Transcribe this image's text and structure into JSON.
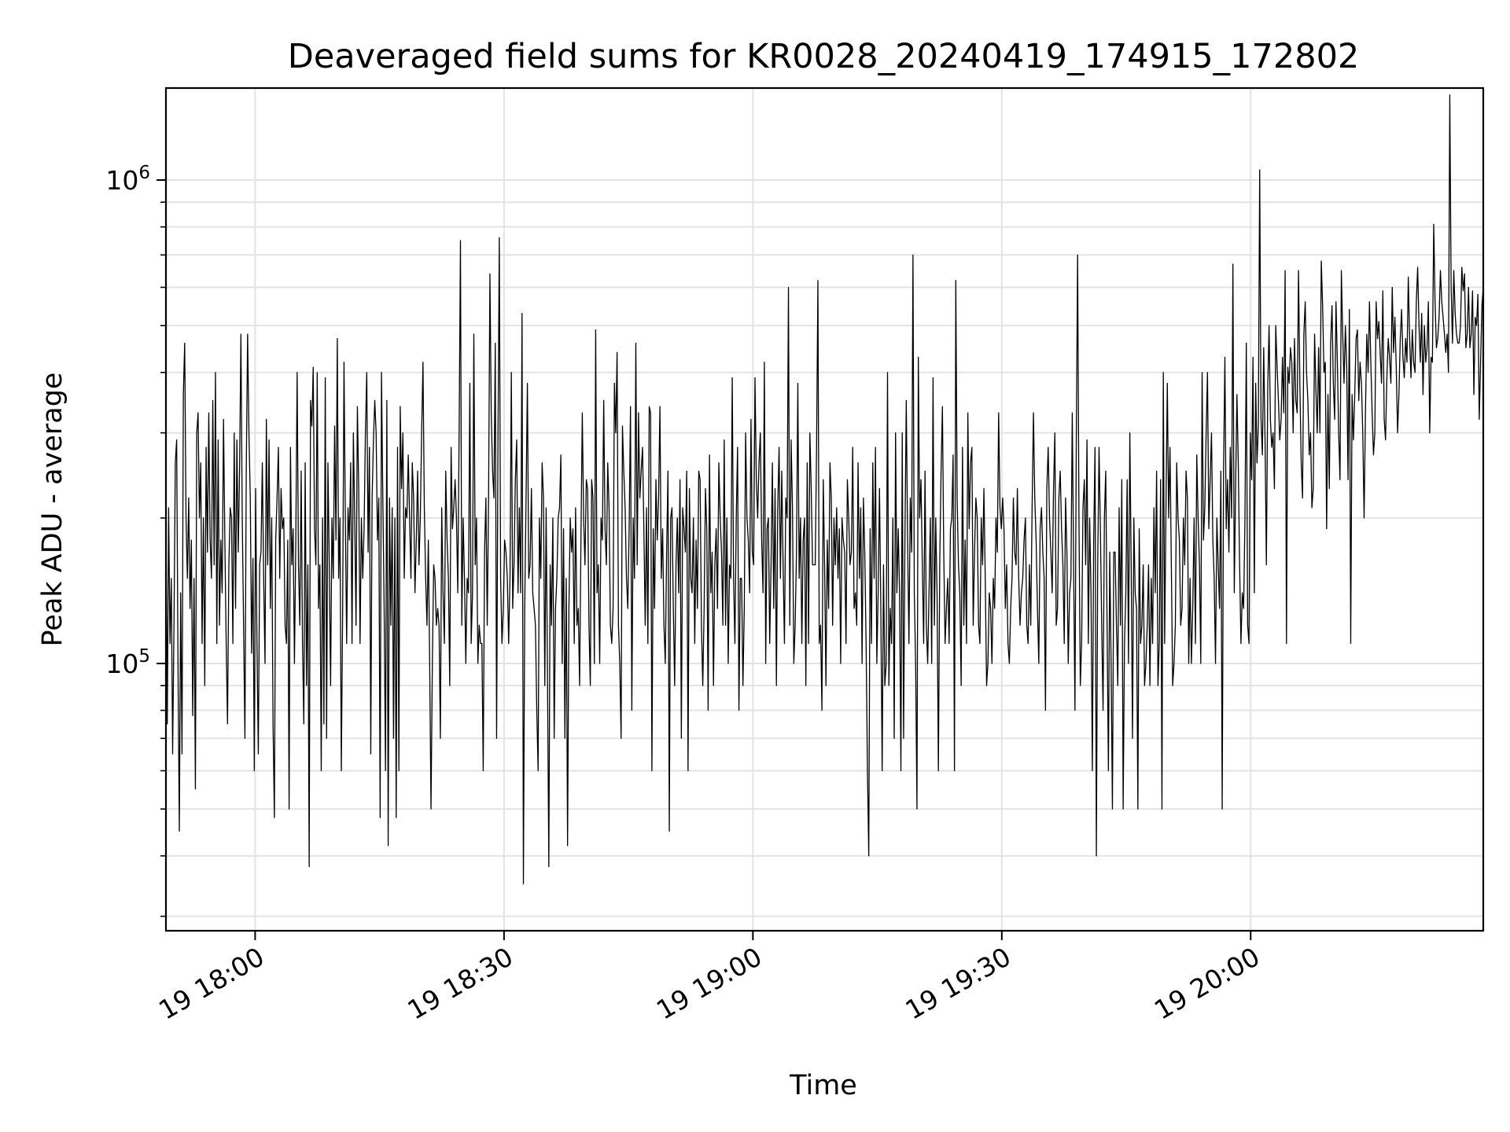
{
  "chart_data": {
    "type": "line",
    "title": "Deaveraged field sums for KR0028_20240419_174915_172802",
    "xlabel": "Time",
    "ylabel": "Peak ADU - average",
    "yscale": "log",
    "ylim": [
      28000,
      1550000
    ],
    "xlim": [
      "2024-04-19 17:49:15",
      "2024-04-19 20:28:02"
    ],
    "x_ticks": [
      "2024-04-19 18:00",
      "2024-04-19 18:30",
      "2024-04-19 19:00",
      "2024-04-19 19:30",
      "2024-04-19 20:00"
    ],
    "x_tick_labels": [
      "19 18:00",
      "19 18:30",
      "19 19:00",
      "19 19:30",
      "19 20:00"
    ],
    "y_ticks": [
      {
        "base": "10",
        "exp": "5",
        "value": 100000
      },
      {
        "base": "10",
        "exp": "6",
        "value": 1000000
      }
    ],
    "grid": true,
    "legend": "none",
    "line_color": "#000000",
    "series": [
      {
        "x_start": "2024-04-19 17:49:15",
        "x_end": "2024-04-19 20:28:02",
        "values": [
          200000,
          75000,
          210000,
          110000,
          150000,
          65000,
          120000,
          260000,
          290000,
          100000,
          45000,
          140000,
          65000,
          360000,
          460000,
          200000,
          150000,
          220000,
          130000,
          180000,
          78000,
          150000,
          55000,
          300000,
          330000,
          200000,
          260000,
          110000,
          200000,
          90000,
          280000,
          170000,
          330000,
          180000,
          150000,
          350000,
          160000,
          400000,
          110000,
          290000,
          120000,
          180000,
          140000,
          320000,
          180000,
          110000,
          75000,
          160000,
          210000,
          200000,
          110000,
          300000,
          130000,
          290000,
          170000,
          250000,
          480000,
          200000,
          120000,
          70000,
          250000,
          480000,
          300000,
          220000,
          105000,
          165000,
          60000,
          230000,
          110000,
          65000,
          160000,
          170000,
          260000,
          150000,
          100000,
          320000,
          160000,
          290000,
          130000,
          200000,
          75000,
          48000,
          180000,
          220000,
          280000,
          150000,
          230000,
          190000,
          200000,
          120000,
          110000,
          180000,
          50000,
          280000,
          160000,
          190000,
          100000,
          180000,
          400000,
          160000,
          120000,
          250000,
          110000,
          75000,
          260000,
          90000,
          160000,
          38000,
          350000,
          310000,
          410000,
          190000,
          160000,
          400000,
          130000,
          160000,
          60000,
          200000,
          75000,
          390000,
          70000,
          260000,
          160000,
          90000,
          200000,
          150000,
          310000,
          180000,
          470000,
          150000,
          200000,
          60000,
          130000,
          420000,
          200000,
          110000,
          210000,
          180000,
          260000,
          110000,
          300000,
          200000,
          120000,
          340000,
          230000,
          110000,
          200000,
          150000,
          190000,
          300000,
          400000,
          170000,
          280000,
          65000,
          220000,
          290000,
          350000,
          300000,
          180000,
          220000,
          48000,
          400000,
          220000,
          130000,
          60000,
          350000,
          42000,
          220000,
          120000,
          210000,
          70000,
          200000,
          48000,
          280000,
          60000,
          340000,
          230000,
          300000,
          150000,
          210000,
          200000,
          270000,
          200000,
          150000,
          260000,
          220000,
          140000,
          180000,
          250000,
          160000,
          200000,
          300000,
          420000,
          210000,
          150000,
          120000,
          180000,
          100000,
          50000,
          100000,
          160000,
          150000,
          120000,
          130000,
          120000,
          70000,
          210000,
          140000,
          110000,
          250000,
          180000,
          150000,
          90000,
          280000,
          190000,
          210000,
          240000,
          200000,
          140000,
          300000,
          750000,
          120000,
          200000,
          150000,
          100000,
          150000,
          140000,
          380000,
          110000,
          140000,
          480000,
          160000,
          200000,
          100000,
          120000,
          110000,
          110000,
          60000,
          170000,
          220000,
          120000,
          220000,
          640000,
          330000,
          250000,
          220000,
          460000,
          70000,
          280000,
          760000,
          150000,
          110000,
          130000,
          180000,
          170000,
          150000,
          110000,
          150000,
          400000,
          130000,
          160000,
          240000,
          290000,
          140000,
          210000,
          140000,
          530000,
          35000,
          130000,
          220000,
          380000,
          150000,
          160000,
          230000,
          140000,
          130000,
          120000,
          80000,
          60000,
          200000,
          150000,
          260000,
          220000,
          90000,
          210000,
          95000,
          38000,
          160000,
          120000,
          200000,
          70000,
          130000,
          150000,
          200000,
          210000,
          270000,
          100000,
          190000,
          70000,
          150000,
          42000,
          130000,
          200000,
          170000,
          190000,
          110000,
          210000,
          120000,
          130000,
          90000,
          180000,
          330000,
          200000,
          160000,
          240000,
          230000,
          120000,
          90000,
          240000,
          220000,
          100000,
          490000,
          140000,
          160000,
          100000,
          200000,
          180000,
          350000,
          190000,
          160000,
          260000,
          210000,
          120000,
          110000,
          130000,
          380000,
          300000,
          440000,
          120000,
          100000,
          70000,
          310000,
          250000,
          210000,
          150000,
          130000,
          190000,
          340000,
          80000,
          200000,
          150000,
          460000,
          160000,
          330000,
          220000,
          250000,
          280000,
          190000,
          120000,
          210000,
          110000,
          340000,
          330000,
          60000,
          190000,
          130000,
          240000,
          180000,
          220000,
          340000,
          150000,
          190000,
          120000,
          100000,
          170000,
          250000,
          45000,
          200000,
          210000,
          130000,
          90000,
          160000,
          200000,
          140000,
          240000,
          70000,
          210000,
          190000,
          170000,
          250000,
          60000,
          230000,
          150000,
          140000,
          200000,
          110000,
          180000,
          130000,
          250000,
          240000,
          120000,
          90000,
          130000,
          230000,
          190000,
          80000,
          270000,
          140000,
          170000,
          90000,
          160000,
          190000,
          130000,
          260000,
          200000,
          170000,
          120000,
          290000,
          120000,
          200000,
          100000,
          160000,
          150000,
          390000,
          150000,
          110000,
          200000,
          280000,
          80000,
          150000,
          150000,
          90000,
          130000,
          300000,
          200000,
          180000,
          140000,
          320000,
          170000,
          160000,
          390000,
          240000,
          200000,
          260000,
          300000,
          180000,
          140000,
          420000,
          100000,
          190000,
          200000,
          110000,
          160000,
          260000,
          130000,
          230000,
          90000,
          210000,
          280000,
          150000,
          250000,
          160000,
          110000,
          220000,
          200000,
          600000,
          120000,
          290000,
          210000,
          100000,
          120000,
          170000,
          380000,
          150000,
          200000,
          110000,
          180000,
          200000,
          90000,
          260000,
          110000,
          300000,
          230000,
          160000,
          160000,
          160000,
          280000,
          620000,
          110000,
          120000,
          80000,
          240000,
          160000,
          90000,
          180000,
          130000,
          260000,
          220000,
          120000,
          200000,
          160000,
          210000,
          150000,
          190000,
          100000,
          200000,
          180000,
          170000,
          110000,
          240000,
          200000,
          160000,
          170000,
          280000,
          130000,
          140000,
          120000,
          260000,
          150000,
          210000,
          100000,
          220000,
          170000,
          110000,
          60000,
          40000,
          190000,
          110000,
          260000,
          150000,
          280000,
          100000,
          140000,
          230000,
          130000,
          60000,
          160000,
          90000,
          100000,
          400000,
          90000,
          130000,
          110000,
          200000,
          70000,
          300000,
          140000,
          190000,
          140000,
          60000,
          300000,
          70000,
          180000,
          350000,
          180000,
          110000,
          220000,
          170000,
          700000,
          140000,
          100000,
          50000,
          430000,
          200000,
          240000,
          160000,
          110000,
          250000,
          120000,
          100000,
          140000,
          200000,
          100000,
          390000,
          120000,
          200000,
          140000,
          60000,
          160000,
          250000,
          340000,
          170000,
          110000,
          130000,
          150000,
          110000,
          190000,
          200000,
          270000,
          60000,
          620000,
          220000,
          160000,
          140000,
          90000,
          280000,
          120000,
          180000,
          110000,
          330000,
          190000,
          260000,
          280000,
          120000,
          170000,
          220000,
          200000,
          120000,
          110000,
          200000,
          160000,
          230000,
          150000,
          90000,
          100000,
          140000,
          130000,
          100000,
          150000,
          130000,
          200000,
          170000,
          330000,
          210000,
          190000,
          220000,
          190000,
          130000,
          160000,
          110000,
          100000,
          130000,
          150000,
          220000,
          170000,
          160000,
          230000,
          150000,
          120000,
          140000,
          150000,
          180000,
          200000,
          120000,
          110000,
          160000,
          120000,
          210000,
          330000,
          220000,
          180000,
          130000,
          100000,
          190000,
          210000,
          170000,
          150000,
          80000,
          230000,
          280000,
          200000,
          170000,
          140000,
          230000,
          300000,
          120000,
          130000,
          220000,
          250000,
          190000,
          160000,
          110000,
          220000,
          170000,
          100000,
          140000,
          150000,
          330000,
          160000,
          80000,
          290000,
          700000,
          200000,
          90000,
          110000,
          210000,
          240000,
          160000,
          290000,
          110000,
          200000,
          140000,
          60000,
          180000,
          280000,
          40000,
          160000,
          280000,
          190000,
          120000,
          80000,
          200000,
          250000,
          120000,
          60000,
          170000,
          100000,
          50000,
          170000,
          170000,
          120000,
          90000,
          210000,
          120000,
          240000,
          50000,
          110000,
          140000,
          240000,
          100000,
          300000,
          160000,
          70000,
          200000,
          140000,
          130000,
          50000,
          190000,
          110000,
          120000,
          160000,
          90000,
          100000,
          120000,
          160000,
          90000,
          150000,
          110000,
          210000,
          140000,
          250000,
          90000,
          110000,
          240000,
          50000,
          400000,
          110000,
          210000,
          380000,
          200000,
          280000,
          160000,
          90000,
          100000,
          120000,
          260000,
          200000,
          180000,
          120000,
          130000,
          200000,
          160000,
          250000,
          220000,
          100000,
          150000,
          100000,
          130000,
          200000,
          110000,
          270000,
          200000,
          160000,
          100000,
          400000,
          180000,
          210000,
          300000,
          400000,
          190000,
          240000,
          300000,
          180000,
          150000,
          100000,
          200000,
          160000,
          130000,
          250000,
          50000,
          250000,
          430000,
          190000,
          240000,
          170000,
          280000,
          200000,
          670000,
          140000,
          230000,
          360000,
          260000,
          160000,
          110000,
          140000,
          130000,
          200000,
          460000,
          120000,
          110000,
          300000,
          240000,
          430000,
          140000,
          380000,
          260000,
          310000,
          1050000,
          320000,
          270000,
          450000,
          290000,
          160000,
          370000,
          500000,
          320000,
          280000,
          300000,
          230000,
          500000,
          410000,
          350000,
          290000,
          320000,
          430000,
          330000,
          650000,
          110000,
          410000,
          380000,
          450000,
          420000,
          300000,
          470000,
          350000,
          330000,
          650000,
          380000,
          260000,
          220000,
          480000,
          560000,
          400000,
          350000,
          270000,
          300000,
          210000,
          230000,
          480000,
          370000,
          300000,
          450000,
          300000,
          680000,
          550000,
          400000,
          420000,
          190000,
          360000,
          230000,
          460000,
          550000,
          380000,
          320000,
          560000,
          420000,
          300000,
          240000,
          650000,
          480000,
          380000,
          500000,
          410000,
          240000,
          540000,
          110000,
          360000,
          290000,
          360000,
          470000,
          490000,
          350000,
          420000,
          380000,
          300000,
          200000,
          330000,
          480000,
          400000,
          560000,
          420000,
          330000,
          270000,
          300000,
          560000,
          470000,
          510000,
          440000,
          380000,
          590000,
          320000,
          290000,
          390000,
          470000,
          430000,
          380000,
          600000,
          440000,
          520000,
          410000,
          300000,
          360000,
          470000,
          540000,
          430000,
          390000,
          470000,
          420000,
          630000,
          470000,
          390000,
          490000,
          420000,
          400000,
          560000,
          660000,
          500000,
          420000,
          530000,
          360000,
          500000,
          420000,
          450000,
          560000,
          300000,
          430000,
          420000,
          810000,
          560000,
          450000,
          470000,
          520000,
          650000,
          560000,
          520000,
          480000,
          440000,
          480000,
          400000,
          1500000,
          600000,
          460000,
          650000,
          530000,
          480000,
          460000,
          460000,
          500000,
          660000,
          590000,
          640000,
          450000,
          480000,
          600000,
          450000,
          480000,
          590000,
          360000,
          520000,
          500000,
          580000,
          320000,
          420000,
          550000,
          600000
        ]
      }
    ]
  }
}
